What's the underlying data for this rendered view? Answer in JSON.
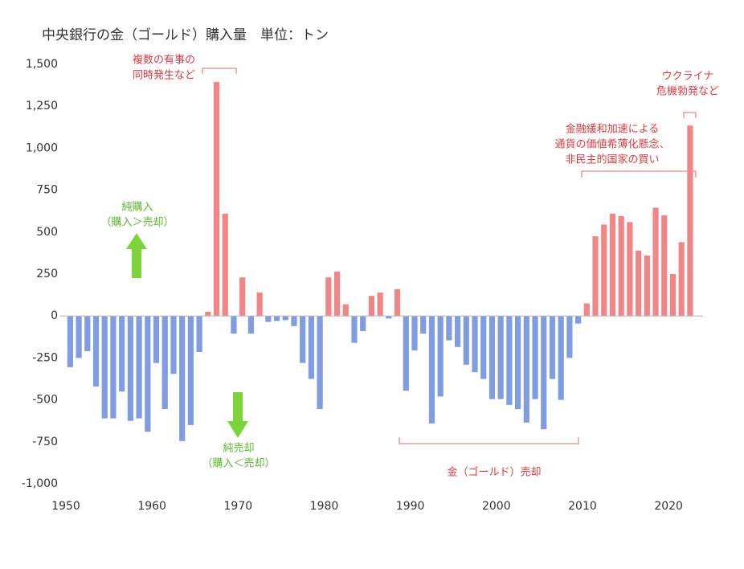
{
  "chart_data": {
    "type": "bar",
    "title": "中央銀行の金（ゴールド）購入量　単位：トン",
    "x": [
      1950,
      1951,
      1952,
      1953,
      1954,
      1955,
      1956,
      1957,
      1958,
      1959,
      1960,
      1961,
      1962,
      1963,
      1964,
      1965,
      1966,
      1967,
      1968,
      1969,
      1970,
      1971,
      1972,
      1973,
      1974,
      1975,
      1976,
      1977,
      1978,
      1979,
      1980,
      1981,
      1982,
      1983,
      1984,
      1985,
      1986,
      1987,
      1988,
      1989,
      1990,
      1991,
      1992,
      1993,
      1994,
      1995,
      1996,
      1997,
      1998,
      1999,
      2000,
      2001,
      2002,
      2003,
      2004,
      2005,
      2006,
      2007,
      2008,
      2009,
      2010,
      2011,
      2012,
      2013,
      2014,
      2015,
      2016,
      2017,
      2018,
      2019,
      2020,
      2021,
      2022
    ],
    "values": [
      -305,
      -250,
      -210,
      -420,
      -610,
      -610,
      -450,
      -625,
      -610,
      -690,
      -280,
      -555,
      -345,
      -745,
      -650,
      -215,
      25,
      1395,
      610,
      -105,
      230,
      -105,
      140,
      -35,
      -30,
      -25,
      -60,
      -280,
      -375,
      -555,
      230,
      265,
      70,
      -160,
      -90,
      120,
      140,
      -15,
      160,
      -445,
      -205,
      -105,
      -640,
      -480,
      -145,
      -185,
      -290,
      -335,
      -375,
      -495,
      -495,
      -530,
      -555,
      -635,
      -495,
      -675,
      -375,
      -500,
      -250,
      -45,
      75,
      475,
      545,
      610,
      595,
      560,
      390,
      360,
      645,
      600,
      250,
      440,
      1135
    ],
    "positive_color": "#f28585",
    "negative_color": "#7f9de0",
    "xlim": [
      1950,
      2024
    ],
    "xticks": [
      1950,
      1960,
      1970,
      1980,
      1990,
      2000,
      2010,
      2020
    ],
    "ylim": [
      -1000,
      1500
    ],
    "yticks": [
      {
        "value": -1000,
        "label": "-1,000"
      },
      -750,
      -500,
      -250,
      0,
      250,
      500,
      750,
      {
        "value": 1000,
        "label": "1,000"
      },
      {
        "value": 1250,
        "label": "1,250"
      },
      {
        "value": 1500,
        "label": "1,500"
      }
    ],
    "grid": false,
    "annotations": [
      {
        "lines": [
          "複数の有事の",
          "同時発生など"
        ],
        "color": "#e0393e"
      },
      {
        "lines": [
          "ウクライナ",
          "危機勃発など"
        ],
        "color": "#e0393e"
      },
      {
        "lines": [
          "金融緩和加速による",
          "通貨の価値希薄化懸念、",
          "非民主的国家の買い"
        ],
        "color": "#e0393e"
      },
      {
        "lines": [
          "純購入",
          "（購入＞売却）"
        ],
        "color": "#5cb82e"
      },
      {
        "lines": [
          "純売却",
          "（購入＜売却）"
        ],
        "color": "#5cb82e"
      },
      {
        "lines": [
          "金（ゴールド）売却"
        ],
        "color": "#e0393e"
      }
    ]
  }
}
